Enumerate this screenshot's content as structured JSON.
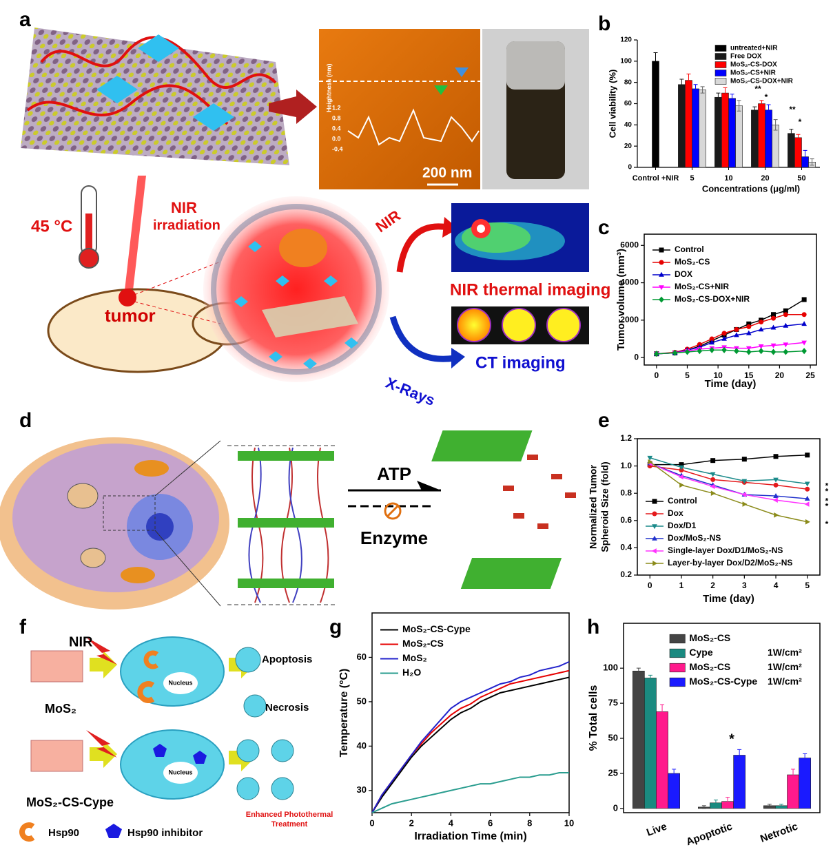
{
  "panel_labels": [
    "a",
    "b",
    "c",
    "d",
    "e",
    "f",
    "g",
    "h"
  ],
  "panel_a": {
    "temperature": "45 °C",
    "irradiation": [
      "NIR",
      "irradiation"
    ],
    "tumor": "tumor",
    "nir": "NIR",
    "thermal": "NIR thermal imaging",
    "ct": "CT imaging",
    "xray": "X-Rays",
    "scale": "200 nm",
    "afm_ylabel": "Heightness (nm)",
    "afm_ticks": [
      "1.2",
      "0.8",
      "0.4",
      "0.0",
      "-0.4"
    ]
  },
  "panel_d": {
    "atp": "ATP",
    "enzyme": "Enzyme"
  },
  "panel_f": {
    "nir": "NIR",
    "mos2": "MoS₂",
    "cype": "MoS₂-CS-Cype",
    "apoptosis": "Apoptosis",
    "necrosis": "Necrosis",
    "nucleus": [
      "Nucleus",
      "Nucleus"
    ],
    "hsp90": "Hsp90",
    "inhibitor": "Hsp90 inhibitor",
    "enhanced": [
      "Enhanced Photothermal",
      "Treatment"
    ]
  },
  "chart_data": [
    {
      "type": "bar",
      "ylabel": "Cell viability (%)",
      "xlabel": "Concentrations (μg/ml)",
      "box": false,
      "categories": [
        "Control +NIR",
        "5",
        "10",
        "20",
        "50"
      ],
      "ylim": [
        0,
        120
      ],
      "yticks": [
        0,
        20,
        40,
        60,
        80,
        100,
        120
      ],
      "legend": "upper right",
      "annotations": [
        "**",
        "*",
        "**",
        "*"
      ],
      "series": [
        {
          "name": "untreated+NIR",
          "color": "#000000",
          "values": [
            100,
            null,
            null,
            null,
            null
          ],
          "errors": [
            8,
            null,
            null,
            null,
            null
          ]
        },
        {
          "name": "Free DOX",
          "color": "#1a1a1a",
          "values": [
            null,
            78,
            66,
            54,
            32
          ],
          "errors": [
            null,
            5,
            4,
            3,
            4
          ]
        },
        {
          "name": "MoS₂-CS-DOX",
          "color": "#ff0000",
          "values": [
            null,
            82,
            70,
            60,
            28
          ],
          "errors": [
            null,
            6,
            5,
            3,
            3
          ]
        },
        {
          "name": "MoS₂-CS+NIR",
          "color": "#0000ff",
          "values": [
            null,
            74,
            65,
            54,
            10
          ],
          "errors": [
            null,
            4,
            4,
            5,
            6
          ]
        },
        {
          "name": "MoS₂-CS-DOX+NIR",
          "color": "#d8d8d8",
          "values": [
            null,
            73,
            58,
            40,
            5
          ],
          "errors": [
            null,
            3,
            5,
            5,
            3
          ]
        }
      ]
    },
    {
      "type": "line",
      "ylabel": "Tumor volume (mm³)",
      "xlabel": "Time (day)",
      "x": [
        0,
        3,
        5,
        7,
        9,
        11,
        13,
        15,
        17,
        19,
        21,
        24
      ],
      "xlim": [
        -2,
        26
      ],
      "xticks": [
        0,
        5,
        10,
        15,
        20,
        25
      ],
      "ylim": [
        -400,
        6600
      ],
      "yticks": [
        0,
        2000,
        4000,
        6000
      ],
      "legend": "upper left",
      "series": [
        {
          "name": "Control",
          "color": "#000000",
          "marker": "square",
          "values": [
            200,
            250,
            400,
            600,
            900,
            1200,
            1500,
            1800,
            2000,
            2300,
            2500,
            3100
          ]
        },
        {
          "name": "MoS₂-CS",
          "color": "#e60000",
          "marker": "circle",
          "values": [
            200,
            280,
            450,
            700,
            1000,
            1300,
            1500,
            1650,
            1900,
            2100,
            2300,
            2300
          ]
        },
        {
          "name": "DOX",
          "color": "#0000cc",
          "marker": "triangle-up",
          "values": [
            200,
            250,
            400,
            550,
            800,
            1000,
            1200,
            1300,
            1500,
            1600,
            1700,
            1800
          ]
        },
        {
          "name": "MoS₂-CS+NIR",
          "color": "#ff00ff",
          "marker": "triangle-down",
          "values": [
            200,
            250,
            350,
            450,
            500,
            550,
            500,
            500,
            600,
            650,
            700,
            800
          ]
        },
        {
          "name": "MoS₂-CS-DOX+NIR",
          "color": "#009933",
          "marker": "diamond",
          "values": [
            200,
            250,
            300,
            350,
            400,
            400,
            350,
            300,
            350,
            300,
            300,
            350
          ]
        }
      ]
    },
    {
      "type": "line",
      "ylabel": [
        "Normalized Tumor",
        "Spheroid Size (fold)"
      ],
      "xlabel": "Time (day)",
      "x": [
        0,
        1,
        2,
        3,
        4,
        5
      ],
      "xlim": [
        -0.4,
        5.4
      ],
      "xticks": [
        0,
        1,
        2,
        3,
        4,
        5
      ],
      "ylim": [
        0.2,
        1.2
      ],
      "yticks": [
        0.2,
        0.4,
        0.6,
        0.8,
        {
          "value": 1,
          "label": "1.0"
        },
        1.2
      ],
      "legend": "lower left",
      "annotations": [
        "*",
        "*",
        "*",
        "*",
        "*"
      ],
      "series": [
        {
          "name": "Control",
          "color": "#000000",
          "marker": "square",
          "values": [
            1.01,
            1.01,
            1.04,
            1.05,
            1.07,
            1.08
          ]
        },
        {
          "name": "Dox",
          "color": "#e41a1c",
          "marker": "circle",
          "values": [
            1.0,
            0.97,
            0.9,
            0.88,
            0.86,
            0.83
          ]
        },
        {
          "name": "Dox/D1",
          "color": "#1b8a8a",
          "marker": "triangle-down",
          "values": [
            1.06,
            0.99,
            0.94,
            0.89,
            0.9,
            0.87
          ]
        },
        {
          "name": "Dox/MoS₂-NS",
          "color": "#2233cc",
          "marker": "triangle-up",
          "values": [
            1.02,
            0.93,
            0.86,
            0.79,
            0.78,
            0.76
          ]
        },
        {
          "name": "Single-layer Dox/D1/MoS₂-NS",
          "color": "#ff33ff",
          "marker": "triangle-left",
          "values": [
            1.02,
            0.92,
            0.85,
            0.79,
            0.75,
            0.72
          ]
        },
        {
          "name": "Layer-by-layer Dox/D2/MoS₂-NS",
          "color": "#8b8b1a",
          "marker": "triangle-right",
          "values": [
            1.03,
            0.86,
            0.8,
            0.72,
            0.64,
            0.59
          ]
        }
      ]
    },
    {
      "type": "line",
      "ylabel": "Temperature (°C)",
      "xlabel": "Irradiation Time (min)",
      "x": [
        0,
        0.5,
        1,
        1.5,
        2,
        2.5,
        3,
        3.5,
        4,
        4.5,
        5,
        5.5,
        6,
        6.5,
        7,
        7.5,
        8,
        8.5,
        9,
        9.5,
        10
      ],
      "xlim": [
        0,
        10
      ],
      "xticks": [
        0,
        2,
        4,
        6,
        8,
        10
      ],
      "ylim": [
        25,
        70
      ],
      "yticks": [
        30,
        40,
        50,
        60
      ],
      "legend": "upper left",
      "series": [
        {
          "name": "MoS₂-CS-Cype",
          "color": "#000000",
          "values": [
            25,
            28.5,
            31.5,
            34.5,
            37.5,
            40,
            42,
            44,
            46,
            47.5,
            48.5,
            50,
            51,
            52,
            52.5,
            53,
            53.5,
            54,
            54.5,
            55,
            55.5
          ]
        },
        {
          "name": "MoS₂-CS",
          "color": "#e60000",
          "values": [
            25,
            29,
            32,
            35,
            38,
            40.5,
            43,
            45,
            47,
            48.5,
            49.5,
            51,
            52,
            53,
            54,
            54.5,
            55,
            55.5,
            56,
            56.5,
            57
          ]
        },
        {
          "name": "MoS₂",
          "color": "#2222cc",
          "values": [
            25,
            29,
            32,
            35,
            38,
            41,
            43.5,
            46,
            48.5,
            50,
            51,
            52,
            53,
            54,
            54.5,
            55.5,
            56,
            57,
            57.5,
            58,
            59
          ]
        },
        {
          "name": "H₂O",
          "color": "#2a9d8f",
          "values": [
            25,
            26,
            27,
            27.5,
            28,
            28.5,
            29,
            29.5,
            30,
            30.5,
            31,
            31.5,
            31.5,
            32,
            32.5,
            33,
            33,
            33.5,
            33.5,
            34,
            34
          ]
        }
      ]
    },
    {
      "type": "bar",
      "ylabel": "% Total cells",
      "categories": [
        "Live",
        "Apoptotic",
        "Netrotic"
      ],
      "ylim": [
        -3,
        132
      ],
      "yticks": [
        0,
        25,
        50,
        75,
        100
      ],
      "legend": "upper right",
      "annotations": [
        "*"
      ],
      "series": [
        {
          "name": "MoS₂-CS",
          "color": "#444444",
          "values": [
            98,
            1,
            2
          ],
          "errors": [
            2,
            1,
            1
          ]
        },
        {
          "name": "Cype",
          "note": "1W/cm²",
          "color": "#1a8a80",
          "values": [
            93,
            4,
            2
          ],
          "errors": [
            2,
            2,
            1
          ]
        },
        {
          "name": "MoS₂-CS",
          "note": "1W/cm²",
          "color": "#ff1a8c",
          "values": [
            69,
            5,
            24
          ],
          "errors": [
            5,
            3,
            4
          ]
        },
        {
          "name": "MoS₂-CS-Cype",
          "note": "1W/cm²",
          "color": "#1a1aff",
          "values": [
            25,
            38,
            36
          ],
          "errors": [
            3,
            4,
            3
          ]
        }
      ]
    }
  ]
}
